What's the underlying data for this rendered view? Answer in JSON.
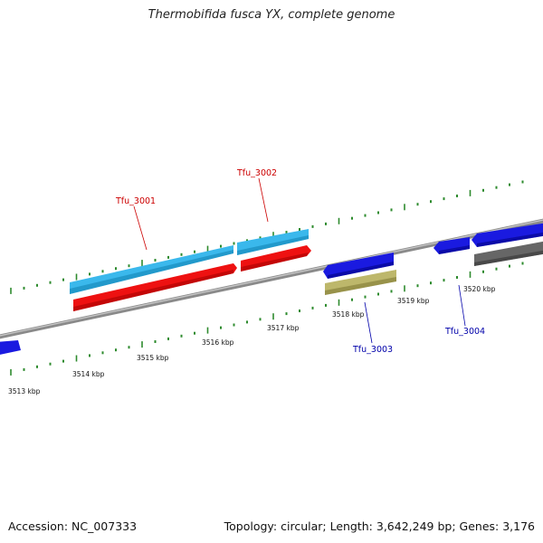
{
  "title": "Thermobifida fusca YX, complete genome",
  "footer": {
    "accession": "Accession: NC_007333",
    "summary": "Topology: circular; Length: 3,642,249 bp; Genes: 3,176"
  },
  "colors": {
    "background": "#ffffff",
    "backbone": "#8a8a8a",
    "tick": "#2e8b2e",
    "forward_label": "#cc0000",
    "reverse_label": "#0000aa",
    "cds": "#3ab8ec",
    "gene_forward": "#ee1111",
    "gene_reverse": "#1a1ae0",
    "rna": "#bdb76b",
    "other": "#666666"
  },
  "tick_labels": [
    "3513 kbp",
    "3514 kbp",
    "3515 kbp",
    "3516 kbp",
    "3517 kbp",
    "3518 kbp",
    "3519 kbp",
    "3520 kbp"
  ],
  "gene_labels": {
    "tfu_3001": "Tfu_3001",
    "tfu_3002": "Tfu_3002",
    "tfu_3003": "Tfu_3003",
    "tfu_3004": "Tfu_3004"
  }
}
